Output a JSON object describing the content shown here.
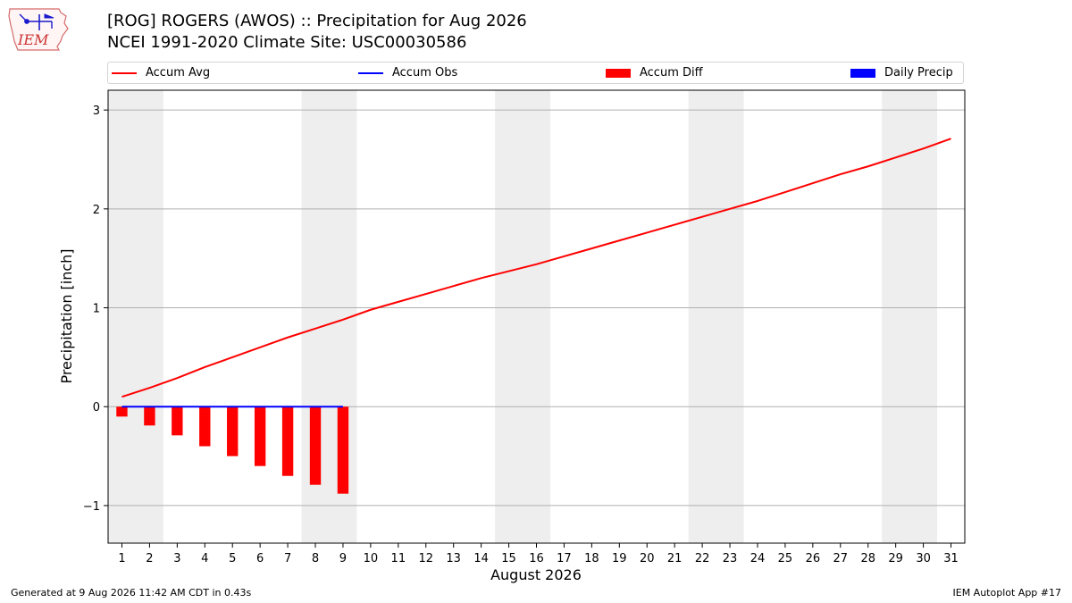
{
  "header": {
    "title_line1": "[ROG] ROGERS (AWOS) :: Precipitation for Aug 2026",
    "title_line2": "NCEI 1991-2020 Climate Site: USC00030586"
  },
  "logo": {
    "text": "IEM",
    "icon": "iem-weather-station-logo"
  },
  "legend": [
    {
      "label": "Accum Avg",
      "kind": "line",
      "color": "#ff0000"
    },
    {
      "label": "Accum Obs",
      "kind": "line",
      "color": "#0000ff"
    },
    {
      "label": "Accum Diff",
      "kind": "bar",
      "color": "#ff0000"
    },
    {
      "label": "Daily Precip",
      "kind": "bar",
      "color": "#0000ff"
    }
  ],
  "footer": {
    "left": "Generated at 9 Aug 2026 11:42 AM CDT in 0.43s",
    "right": "IEM Autoplot App #17"
  },
  "chart_data": {
    "type": "line",
    "xlabel": "August 2026",
    "ylabel": "Precipitation [inch]",
    "x": [
      1,
      2,
      3,
      4,
      5,
      6,
      7,
      8,
      9,
      10,
      11,
      12,
      13,
      14,
      15,
      16,
      17,
      18,
      19,
      20,
      21,
      22,
      23,
      24,
      25,
      26,
      27,
      28,
      29,
      30,
      31
    ],
    "xlim": [
      0.5,
      31.5
    ],
    "ylim": [
      -1.38,
      3.2
    ],
    "yticks": [
      3,
      2,
      1,
      0,
      -1
    ],
    "ytick_labels": [
      "3",
      "2",
      "1",
      "0",
      "−1"
    ],
    "grid": "horizontal",
    "legend_position": "top",
    "weekend_shading": [
      [
        1,
        2
      ],
      [
        8,
        9
      ],
      [
        15,
        16
      ],
      [
        22,
        23
      ],
      [
        29,
        30
      ]
    ],
    "series": [
      {
        "name": "Accum Avg",
        "kind": "line",
        "color": "#ff0000",
        "x": [
          1,
          2,
          3,
          4,
          5,
          6,
          7,
          8,
          9,
          10,
          11,
          12,
          13,
          14,
          15,
          16,
          17,
          18,
          19,
          20,
          21,
          22,
          23,
          24,
          25,
          26,
          27,
          28,
          29,
          30,
          31
        ],
        "values": [
          0.1,
          0.19,
          0.29,
          0.4,
          0.5,
          0.6,
          0.7,
          0.79,
          0.88,
          0.98,
          1.06,
          1.14,
          1.22,
          1.3,
          1.37,
          1.44,
          1.52,
          1.6,
          1.68,
          1.76,
          1.84,
          1.92,
          2.0,
          2.08,
          2.17,
          2.26,
          2.35,
          2.43,
          2.52,
          2.61,
          2.71
        ]
      },
      {
        "name": "Accum Obs",
        "kind": "line",
        "color": "#0000ff",
        "x": [
          1,
          2,
          3,
          4,
          5,
          6,
          7,
          8,
          9
        ],
        "values": [
          0,
          0,
          0,
          0,
          0,
          0,
          0,
          0,
          0
        ]
      },
      {
        "name": "Accum Diff",
        "kind": "bar",
        "color": "#ff0000",
        "x": [
          1,
          2,
          3,
          4,
          5,
          6,
          7,
          8,
          9
        ],
        "values": [
          -0.1,
          -0.19,
          -0.29,
          -0.4,
          -0.5,
          -0.6,
          -0.7,
          -0.79,
          -0.88
        ]
      },
      {
        "name": "Daily Precip",
        "kind": "bar",
        "color": "#0000ff",
        "x": [
          1,
          2,
          3,
          4,
          5,
          6,
          7,
          8,
          9
        ],
        "values": [
          0,
          0,
          0,
          0,
          0,
          0,
          0,
          0,
          0
        ]
      }
    ]
  }
}
